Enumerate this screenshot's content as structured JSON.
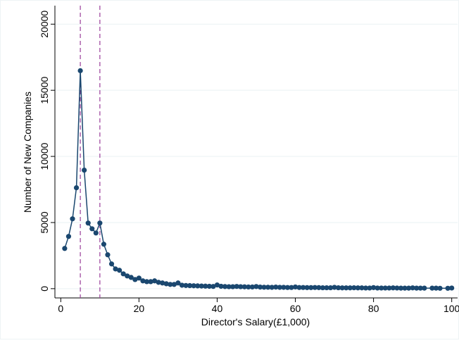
{
  "chart_data": {
    "type": "line",
    "x_label": "Director's Salary(£1,000)",
    "y_label": "Number of New Companies",
    "x": [
      1,
      2,
      3,
      4,
      5,
      6,
      7,
      8,
      9,
      10,
      11,
      12,
      13,
      14,
      15,
      16,
      17,
      18,
      19,
      20,
      21,
      22,
      23,
      24,
      25,
      26,
      27,
      28,
      29,
      30,
      31,
      32,
      33,
      34,
      35,
      36,
      37,
      38,
      39,
      40,
      41,
      42,
      43,
      44,
      45,
      46,
      47,
      48,
      49,
      50,
      51,
      52,
      53,
      54,
      55,
      56,
      57,
      58,
      59,
      60,
      61,
      62,
      63,
      64,
      65,
      66,
      67,
      68,
      69,
      70,
      71,
      72,
      73,
      74,
      75,
      76,
      77,
      78,
      79,
      80,
      81,
      82,
      83,
      84,
      85,
      86,
      87,
      88,
      89,
      90,
      91,
      92,
      93,
      95,
      96,
      97,
      99,
      100
    ],
    "series": [
      {
        "color": "#1a476f",
        "values": [
          3040,
          3950,
          5280,
          7630,
          16480,
          8960,
          4960,
          4530,
          4210,
          4960,
          3360,
          2560,
          1870,
          1490,
          1390,
          1120,
          960,
          850,
          690,
          800,
          590,
          530,
          530,
          590,
          480,
          430,
          370,
          320,
          320,
          430,
          260,
          240,
          230,
          220,
          210,
          200,
          190,
          180,
          170,
          280,
          180,
          160,
          150,
          150,
          170,
          150,
          140,
          130,
          130,
          160,
          120,
          110,
          110,
          100,
          120,
          100,
          100,
          90,
          90,
          130,
          90,
          90,
          80,
          80,
          90,
          80,
          70,
          70,
          70,
          100,
          70,
          60,
          60,
          60,
          70,
          60,
          60,
          50,
          50,
          80,
          50,
          50,
          50,
          50,
          60,
          50,
          40,
          40,
          40,
          60,
          40,
          40,
          40,
          40,
          40,
          30,
          30,
          50
        ]
      }
    ],
    "vlines": [
      5,
      10
    ],
    "vline_color": "#9a3d9a",
    "xlim": [
      -1.5,
      101.5
    ],
    "ylim": [
      -700,
      21400
    ],
    "xticks": [
      0,
      20,
      40,
      60,
      80,
      100
    ],
    "yticks": [
      0,
      5000,
      10000,
      15000,
      20000
    ],
    "grid": true
  }
}
